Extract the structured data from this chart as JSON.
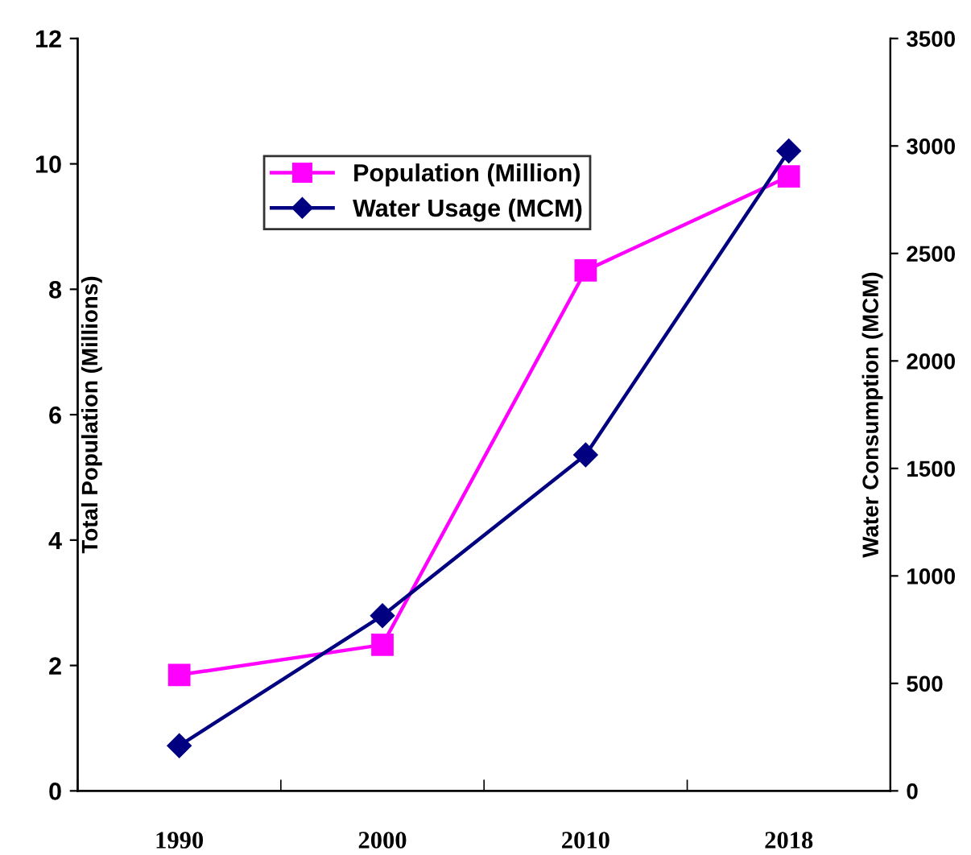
{
  "chart_data": {
    "type": "line",
    "categories": [
      "1990",
      "2000",
      "2010",
      "2018"
    ],
    "ylabel": "Total Population (Millions)",
    "y2label": "Water Consumption (MCM)",
    "ylim": [
      0,
      12
    ],
    "yticks": [
      0,
      2,
      4,
      6,
      8,
      10,
      12
    ],
    "y2lim": [
      0,
      3500
    ],
    "y2ticks": [
      0,
      500,
      1000,
      1500,
      2000,
      2500,
      3000,
      3500
    ],
    "legend": "top",
    "grid": false,
    "series": [
      {
        "name": "Population (Million)",
        "color": "#ff00ff",
        "marker": "square",
        "values": [
          1.85,
          2.33,
          8.3,
          9.8
        ]
      },
      {
        "name": "Water Usage (MCM)",
        "color": "#000080",
        "marker": "diamond",
        "axis": "y2",
        "values": [
          210,
          815,
          1563,
          2977
        ]
      }
    ]
  }
}
